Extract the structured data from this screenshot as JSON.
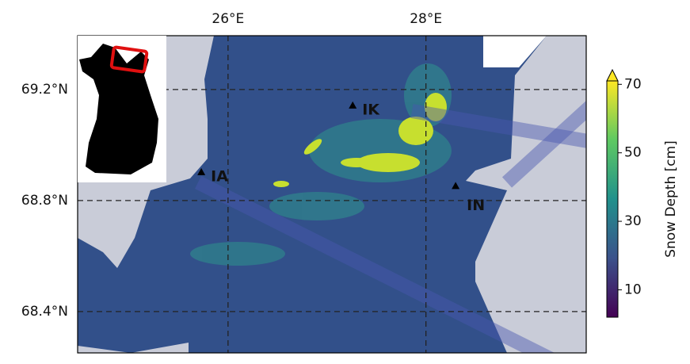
{
  "map": {
    "xlim": [
      24.48,
      29.62
    ],
    "ylim": [
      68.251,
      69.394
    ],
    "xticks": [
      {
        "value": 26,
        "label": "26°E"
      },
      {
        "value": 28,
        "label": "28°E"
      }
    ],
    "yticks": [
      {
        "value": 69.2,
        "label": "69.2°N"
      },
      {
        "value": 68.8,
        "label": "68.8°N"
      },
      {
        "value": 68.4,
        "label": "68.4°N"
      }
    ],
    "sites": [
      {
        "label": "IA",
        "lon": 25.73,
        "lat": 68.9
      },
      {
        "label": "IK",
        "lon": 27.26,
        "lat": 69.14
      },
      {
        "label": "IN",
        "lon": 28.3,
        "lat": 68.85
      }
    ],
    "colorbar": {
      "label": "Snow Depth [cm]",
      "lim": [
        2,
        71
      ],
      "ticks": [
        10,
        30,
        50,
        70
      ]
    }
  }
}
